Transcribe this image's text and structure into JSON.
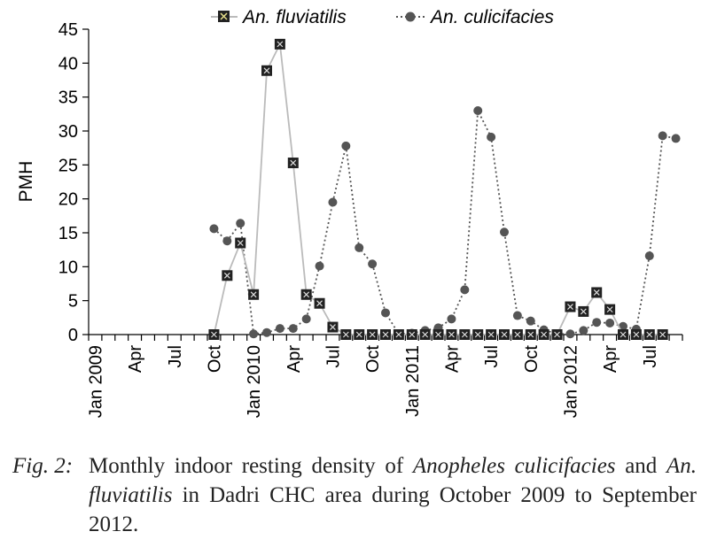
{
  "chart_data": {
    "type": "line",
    "ylabel": "PMH",
    "ylim": [
      0,
      45
    ],
    "yticks": [
      0,
      5,
      10,
      15,
      20,
      25,
      30,
      35,
      40,
      45
    ],
    "x_start": "Jan 2009",
    "x_end": "Sep 2012",
    "xtick_labels": [
      {
        "month": "Jan 2009",
        "label": "Jan 2009"
      },
      {
        "month": "Apr 2009",
        "label": "Apr"
      },
      {
        "month": "Jul 2009",
        "label": "Jul"
      },
      {
        "month": "Oct 2009",
        "label": "Oct"
      },
      {
        "month": "Jan 2010",
        "label": "Jan 2010"
      },
      {
        "month": "Apr 2010",
        "label": "Apr"
      },
      {
        "month": "Jul 2010",
        "label": "Jul"
      },
      {
        "month": "Oct 2010",
        "label": "Oct"
      },
      {
        "month": "Jan 2011",
        "label": "Jan 2011"
      },
      {
        "month": "Apr 2011",
        "label": "Apr"
      },
      {
        "month": "Jul 2011",
        "label": "Jul"
      },
      {
        "month": "Oct 2011",
        "label": "Oct"
      },
      {
        "month": "Jan 2012",
        "label": "Jan 2012"
      },
      {
        "month": "Apr 2012",
        "label": "Apr"
      },
      {
        "month": "Jul 2012",
        "label": "Jul"
      }
    ],
    "legend_position": "top",
    "series": [
      {
        "name": "An. fluviatilis",
        "line_style": "solid",
        "marker": "square",
        "line_color": "#bbbbbb",
        "marker_color": "#222222",
        "x": [
          "Oct 2009",
          "Nov 2009",
          "Dec 2009",
          "Jan 2010",
          "Feb 2010",
          "Mar 2010",
          "Apr 2010",
          "May 2010",
          "Jun 2010",
          "Jul 2010",
          "Aug 2010",
          "Sep 2010",
          "Oct 2010",
          "Nov 2010",
          "Dec 2010",
          "Jan 2011",
          "Feb 2011",
          "Mar 2011",
          "Apr 2011",
          "May 2011",
          "Jun 2011",
          "Jul 2011",
          "Aug 2011",
          "Sep 2011",
          "Oct 2011",
          "Nov 2011",
          "Dec 2011",
          "Jan 2012",
          "Feb 2012",
          "Mar 2012",
          "Apr 2012",
          "May 2012",
          "Jun 2012",
          "Jul 2012",
          "Aug 2012"
        ],
        "values": [
          0,
          8.7,
          13.5,
          5.9,
          38.9,
          42.8,
          25.3,
          5.9,
          4.6,
          1.1,
          0,
          0,
          0,
          0,
          0,
          0,
          0,
          0,
          0,
          0,
          0,
          0,
          0,
          0,
          0,
          0,
          0,
          4.1,
          3.4,
          6.2,
          3.7,
          0,
          0,
          0,
          0
        ]
      },
      {
        "name": "An. culicifacies",
        "line_style": "dotted",
        "marker": "circle",
        "line_color": "#555555",
        "marker_color": "#555555",
        "x": [
          "Oct 2009",
          "Nov 2009",
          "Dec 2009",
          "Jan 2010",
          "Feb 2010",
          "Mar 2010",
          "Apr 2010",
          "May 2010",
          "Jun 2010",
          "Jul 2010",
          "Aug 2010",
          "Sep 2010",
          "Oct 2010",
          "Nov 2010",
          "Dec 2010",
          "Jan 2011",
          "Feb 2011",
          "Mar 2011",
          "Apr 2011",
          "May 2011",
          "Jun 2011",
          "Jul 2011",
          "Aug 2011",
          "Sep 2011",
          "Oct 2011",
          "Nov 2011",
          "Dec 2011",
          "Jan 2012",
          "Feb 2012",
          "Mar 2012",
          "Apr 2012",
          "May 2012",
          "Jun 2012",
          "Jul 2012",
          "Aug 2012",
          "Sep 2012"
        ],
        "values": [
          15.6,
          13.8,
          16.4,
          0.1,
          0.3,
          0.9,
          0.9,
          2.3,
          10.1,
          19.5,
          27.8,
          12.8,
          10.4,
          3.2,
          0.1,
          0.2,
          0.6,
          1.0,
          2.3,
          6.6,
          33.0,
          29.1,
          15.1,
          2.8,
          2.0,
          0.7,
          0.1,
          0.1,
          0.6,
          1.8,
          1.7,
          1.2,
          0.8,
          11.6,
          29.3,
          28.9
        ]
      }
    ]
  },
  "caption": {
    "label": "Fig. 2:",
    "text_1": "Monthly indoor resting density of ",
    "species_1": "Anopheles culicifacies",
    "text_2": " and ",
    "species_2": "An. fluviatilis",
    "text_3": " in Dadri CHC area during October 2009 to September 2012."
  }
}
